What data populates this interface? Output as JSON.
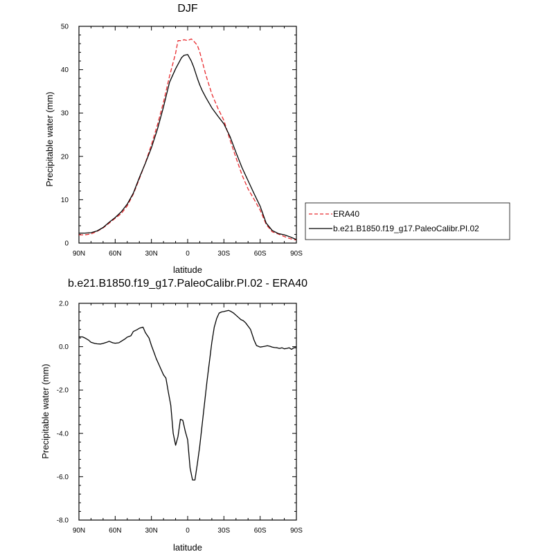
{
  "chart_data": [
    {
      "type": "line",
      "title": "DJF",
      "xlabel": "latitude",
      "ylabel": "Precipitable water (mm)",
      "xlim": [
        90,
        -90
      ],
      "ylim": [
        0,
        50
      ],
      "xticks": [
        {
          "value": 90,
          "label": "90N"
        },
        {
          "value": 60,
          "label": "60N"
        },
        {
          "value": 30,
          "label": "30N"
        },
        {
          "value": 0,
          "label": "0"
        },
        {
          "value": -30,
          "label": "30S"
        },
        {
          "value": -60,
          "label": "60S"
        },
        {
          "value": -90,
          "label": "90S"
        }
      ],
      "yticks": [
        {
          "value": 0,
          "label": "0"
        },
        {
          "value": 10,
          "label": "10"
        },
        {
          "value": 20,
          "label": "20"
        },
        {
          "value": 30,
          "label": "30"
        },
        {
          "value": 40,
          "label": "40"
        },
        {
          "value": 50,
          "label": "50"
        }
      ],
      "legend": {
        "placement": "right"
      },
      "series": [
        {
          "name": "ERA40",
          "color": "#e8282c",
          "dash": "dashed",
          "x": [
            90,
            85,
            80,
            75,
            70,
            65,
            60,
            55,
            50,
            45,
            40,
            35,
            30,
            25,
            20,
            15,
            10,
            8,
            5,
            3,
            0,
            -3,
            -5,
            -8,
            -10,
            -12,
            -15,
            -20,
            -25,
            -30,
            -35,
            -40,
            -45,
            -50,
            -55,
            -60,
            -65,
            -70,
            -75,
            -80,
            -85,
            -90
          ],
          "y": [
            1.9,
            1.9,
            2.1,
            2.7,
            3.5,
            4.6,
            5.7,
            6.8,
            8.6,
            11.3,
            14.8,
            18.5,
            22.7,
            27.3,
            32.5,
            38.5,
            43.8,
            46.7,
            46.7,
            46.9,
            46.7,
            47.1,
            46.6,
            45.6,
            44.1,
            42.0,
            38.8,
            34.4,
            31.1,
            28.3,
            23.8,
            19.7,
            15.7,
            12.5,
            10.1,
            7.6,
            4.3,
            2.6,
            2.1,
            1.5,
            1.0,
            0.7
          ]
        },
        {
          "name": "b.e21.B1850.f19_g17.PaleoCalibr.PI.02",
          "color": "#000000",
          "dash": "solid",
          "x": [
            90,
            85,
            80,
            75,
            70,
            65,
            60,
            55,
            50,
            45,
            40,
            35,
            30,
            25,
            20,
            15,
            10,
            5,
            3,
            0,
            -3,
            -5,
            -8,
            -10,
            -12,
            -15,
            -20,
            -25,
            -30,
            -35,
            -40,
            -45,
            -50,
            -55,
            -60,
            -65,
            -70,
            -75,
            -80,
            -85,
            -90
          ],
          "y": [
            2.3,
            2.3,
            2.4,
            2.8,
            3.6,
            4.8,
            5.9,
            7.2,
            9.0,
            11.5,
            15.1,
            18.4,
            22.0,
            26.3,
            31.4,
            37.1,
            40.2,
            42.8,
            43.3,
            43.5,
            42.0,
            40.6,
            38.0,
            36.5,
            35.2,
            33.6,
            31.2,
            29.3,
            27.5,
            24.6,
            20.9,
            17.4,
            14.4,
            11.4,
            8.5,
            4.6,
            2.9,
            2.2,
            1.9,
            1.4,
            0.8
          ]
        }
      ]
    },
    {
      "type": "line",
      "title": "b.e21.B1850.f19_g17.PaleoCalibr.PI.02 - ERA40",
      "xlabel": "latitude",
      "ylabel": "Precipitable water (mm)",
      "xlim": [
        90,
        -90
      ],
      "ylim": [
        -8,
        2
      ],
      "xticks": [
        {
          "value": 90,
          "label": "90N"
        },
        {
          "value": 60,
          "label": "60N"
        },
        {
          "value": 30,
          "label": "30N"
        },
        {
          "value": 0,
          "label": "0"
        },
        {
          "value": -30,
          "label": "30S"
        },
        {
          "value": -60,
          "label": "60S"
        },
        {
          "value": -90,
          "label": "90S"
        }
      ],
      "yticks": [
        {
          "value": -8,
          "label": "-8.0"
        },
        {
          "value": -6,
          "label": "-6.0"
        },
        {
          "value": -4,
          "label": "-4.0"
        },
        {
          "value": -2,
          "label": "-2.0"
        },
        {
          "value": 0,
          "label": "0.0"
        },
        {
          "value": 2,
          "label": "2.0"
        }
      ],
      "series": [
        {
          "color": "#000000",
          "dash": "solid",
          "x": [
            90,
            87,
            85,
            82,
            80,
            77,
            75,
            72,
            70,
            67,
            65,
            62,
            60,
            57,
            55,
            52,
            50,
            47,
            45,
            42,
            40,
            37,
            35,
            32,
            30,
            28,
            26,
            24,
            22,
            20,
            18,
            16,
            14,
            12,
            10,
            8,
            6,
            4,
            2,
            0,
            -2,
            -4,
            -6,
            -8,
            -10,
            -12,
            -14,
            -16,
            -18,
            -20,
            -22,
            -24,
            -26,
            -28,
            -30,
            -32,
            -34,
            -36,
            -38,
            -40,
            -42,
            -44,
            -46,
            -48,
            -50,
            -52,
            -55,
            -57,
            -60,
            -62,
            -64,
            -66,
            -68,
            -70,
            -72,
            -74,
            -76,
            -78,
            -80,
            -82,
            -84,
            -86,
            -88,
            -90
          ],
          "y": [
            0.45,
            0.45,
            0.4,
            0.3,
            0.2,
            0.15,
            0.13,
            0.12,
            0.15,
            0.2,
            0.25,
            0.18,
            0.16,
            0.18,
            0.25,
            0.35,
            0.44,
            0.5,
            0.7,
            0.78,
            0.85,
            0.9,
            0.65,
            0.4,
            0.05,
            -0.25,
            -0.55,
            -0.8,
            -1.05,
            -1.3,
            -1.45,
            -2.1,
            -2.7,
            -4.0,
            -4.55,
            -4.15,
            -3.35,
            -3.4,
            -3.9,
            -4.3,
            -5.6,
            -6.15,
            -6.15,
            -5.4,
            -4.6,
            -3.6,
            -2.6,
            -1.6,
            -0.7,
            0.2,
            0.9,
            1.3,
            1.55,
            1.6,
            1.62,
            1.65,
            1.67,
            1.62,
            1.55,
            1.45,
            1.35,
            1.25,
            1.2,
            1.1,
            0.95,
            0.8,
            0.3,
            0.05,
            -0.02,
            0.0,
            0.02,
            0.04,
            0.02,
            -0.02,
            -0.04,
            -0.05,
            -0.08,
            -0.05,
            -0.1,
            -0.08,
            -0.05,
            -0.12,
            -0.05,
            -0.05
          ]
        }
      ]
    }
  ]
}
